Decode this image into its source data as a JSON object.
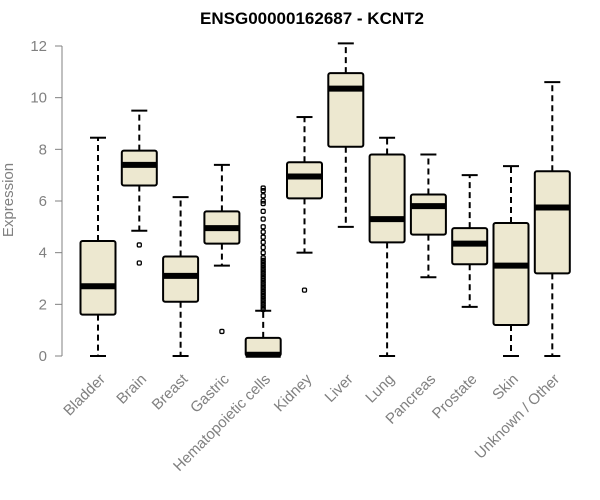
{
  "chart_data": {
    "type": "box",
    "title": "ENSG00000162687 - KCNT2",
    "xlabel": "",
    "ylabel": "Expression",
    "ylim": [
      0,
      12.4
    ],
    "yticks": [
      0,
      2,
      4,
      6,
      8,
      10,
      12
    ],
    "grid": false,
    "box_color": "#EDE8D0",
    "categories": [
      "Bladder",
      "Brain",
      "Breast",
      "Gastric",
      "Hematopoietic cells",
      "Kidney",
      "Liver",
      "Lung",
      "Pancreas",
      "Prostate",
      "Skin",
      "Unknown / Other"
    ],
    "boxes": [
      {
        "min": 0.0,
        "q1": 1.6,
        "median": 2.7,
        "q3": 4.45,
        "max": 8.45,
        "outliers": []
      },
      {
        "min": 4.85,
        "q1": 6.6,
        "median": 7.4,
        "q3": 7.95,
        "max": 9.5,
        "outliers": [
          4.3,
          3.6
        ]
      },
      {
        "min": 0.0,
        "q1": 2.1,
        "median": 3.1,
        "q3": 3.85,
        "max": 6.15,
        "outliers": []
      },
      {
        "min": 3.5,
        "q1": 4.35,
        "median": 4.95,
        "q3": 5.6,
        "max": 7.4,
        "outliers": [
          0.95
        ]
      },
      {
        "min": 0.0,
        "q1": 0.0,
        "median": 0.05,
        "q3": 0.7,
        "max": 1.75,
        "outliers": [
          1.8,
          1.9,
          2.0,
          2.1,
          2.2,
          2.3,
          2.4,
          2.5,
          2.6,
          2.7,
          2.8,
          2.9,
          3.0,
          3.1,
          3.2,
          3.3,
          3.4,
          3.5,
          3.6,
          3.7,
          3.8,
          4.0,
          4.2,
          4.4,
          4.6,
          4.8,
          5.0,
          5.3,
          5.6,
          5.9,
          6.0,
          6.2,
          6.4,
          6.5
        ]
      },
      {
        "min": 4.0,
        "q1": 6.1,
        "median": 6.95,
        "q3": 7.5,
        "max": 9.25,
        "outliers": [
          2.55
        ]
      },
      {
        "min": 5.0,
        "q1": 8.1,
        "median": 10.35,
        "q3": 10.95,
        "max": 12.1,
        "outliers": []
      },
      {
        "min": 0.0,
        "q1": 4.4,
        "median": 5.3,
        "q3": 7.8,
        "max": 8.45,
        "outliers": []
      },
      {
        "min": 3.05,
        "q1": 4.7,
        "median": 5.8,
        "q3": 6.25,
        "max": 7.8,
        "outliers": []
      },
      {
        "min": 1.9,
        "q1": 3.55,
        "median": 4.35,
        "q3": 4.95,
        "max": 7.0,
        "outliers": []
      },
      {
        "min": 0.0,
        "q1": 1.2,
        "median": 3.5,
        "q3": 5.15,
        "max": 7.35,
        "outliers": []
      },
      {
        "min": 0.0,
        "q1": 3.2,
        "median": 5.75,
        "q3": 7.15,
        "max": 10.6,
        "outliers": []
      }
    ]
  }
}
